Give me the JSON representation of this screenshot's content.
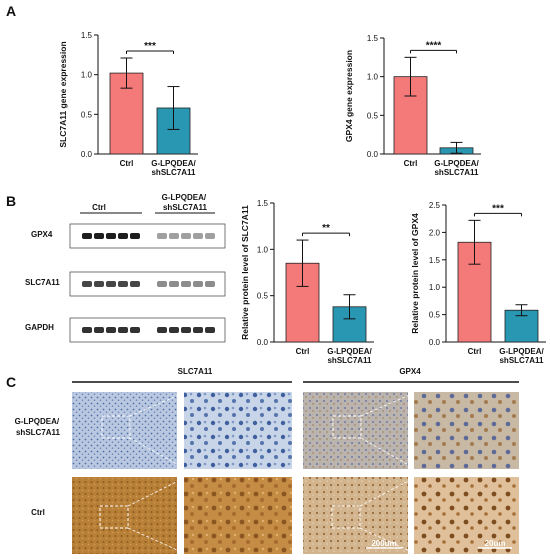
{
  "panels": {
    "a": "A",
    "b": "B",
    "c": "C"
  },
  "chart_data": [
    {
      "type": "bar",
      "panel": "A",
      "categories": [
        "Ctrl",
        "G-LPQDEA/\nshSLC7A11"
      ],
      "values": [
        1.02,
        0.58
      ],
      "errors": [
        0.19,
        0.27
      ],
      "colors": [
        "#f47a7a",
        "#2a97b2"
      ],
      "ylabel": "SLC7A11 gene expression",
      "ylim": [
        0,
        1.5
      ],
      "yticks": [
        0.0,
        0.5,
        1.0,
        1.5
      ],
      "significance": "***",
      "grid": false
    },
    {
      "type": "bar",
      "panel": "A",
      "categories": [
        "Ctrl",
        "G-LPQDEA/\nshSLC7A11"
      ],
      "values": [
        1.0,
        0.08
      ],
      "errors": [
        0.25,
        0.07
      ],
      "colors": [
        "#f47a7a",
        "#2a97b2"
      ],
      "ylabel": "GPX4 gene expression",
      "ylim": [
        0,
        1.5
      ],
      "yticks": [
        0.0,
        0.5,
        1.0,
        1.5
      ],
      "significance": "****",
      "grid": false
    },
    {
      "type": "bar",
      "panel": "B",
      "categories": [
        "Ctrl",
        "G-LPQDEA/\nshSLC7A11"
      ],
      "values": [
        0.85,
        0.38
      ],
      "errors": [
        0.25,
        0.13
      ],
      "colors": [
        "#f47a7a",
        "#2a97b2"
      ],
      "ylabel": "Relative protein level of SLC7A11",
      "ylim": [
        0,
        1.5
      ],
      "yticks": [
        0.0,
        0.5,
        1.0,
        1.5
      ],
      "significance": "**",
      "grid": false
    },
    {
      "type": "bar",
      "panel": "B",
      "categories": [
        "Ctrl",
        "G-LPQDEA/\nshSLC7A11"
      ],
      "values": [
        1.82,
        0.58
      ],
      "errors": [
        0.4,
        0.1
      ],
      "colors": [
        "#f47a7a",
        "#2a97b2"
      ],
      "ylabel": "Relative protein level of GPX4",
      "ylim": [
        0,
        2.5
      ],
      "yticks": [
        0.0,
        0.5,
        1.0,
        1.5,
        2.0,
        2.5
      ],
      "significance": "***",
      "grid": false
    }
  ],
  "western_blot": {
    "groups": [
      "Ctrl",
      "G-LPQDEA/\nshSLC7A11"
    ],
    "rows": [
      {
        "label": "GPX4",
        "intensity": [
          1.0,
          0.35
        ]
      },
      {
        "label": "SLC7A11",
        "intensity": [
          0.8,
          0.45
        ]
      },
      {
        "label": "GAPDH",
        "intensity": [
          0.9,
          0.9
        ]
      }
    ]
  },
  "histology": {
    "columns": [
      "SLC7A11",
      "GPX4"
    ],
    "rows": [
      "G-LPQDEA/\nshSLC7A11",
      "Ctrl"
    ],
    "scale_bars": [
      "200um",
      "20um"
    ]
  }
}
